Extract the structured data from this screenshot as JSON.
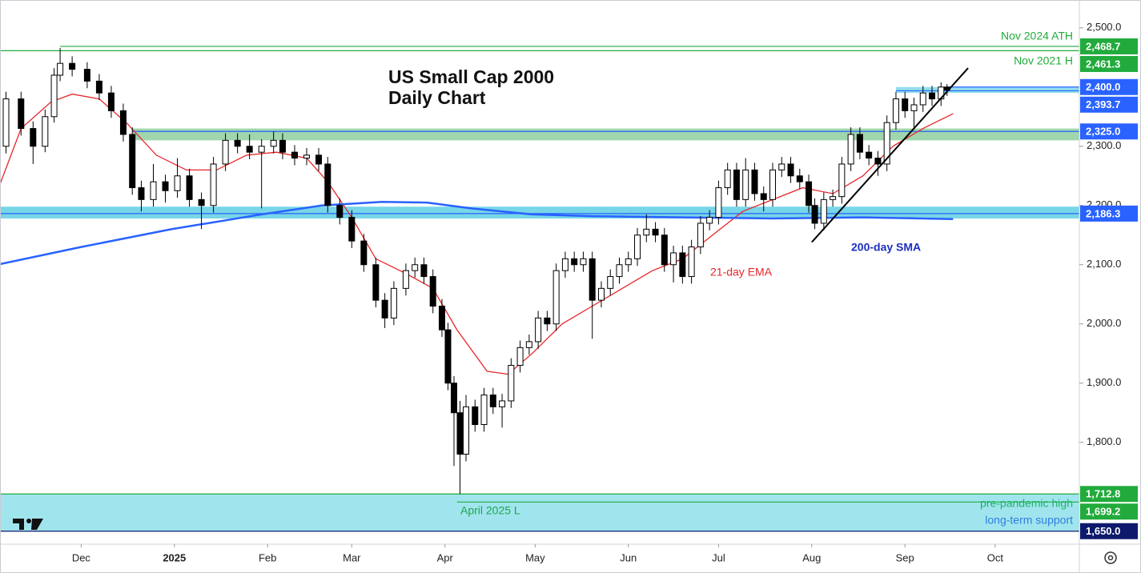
{
  "chart_data": {
    "type": "candlestick",
    "title": "US Small Cap 2000",
    "subtitle": "Daily Chart",
    "xlim": [
      3,
      362
    ],
    "ylim": [
      1628,
      2547
    ],
    "xticks": [
      {
        "value": 30,
        "label": "Dec"
      },
      {
        "value": 61,
        "label": "2025"
      },
      {
        "value": 92,
        "label": "Feb"
      },
      {
        "value": 120,
        "label": "Mar"
      },
      {
        "value": 151,
        "label": "Apr"
      },
      {
        "value": 181,
        "label": "May"
      },
      {
        "value": 212,
        "label": "Jun"
      },
      {
        "value": 242,
        "label": "Jul"
      },
      {
        "value": 273,
        "label": "Aug"
      },
      {
        "value": 304,
        "label": "Sep"
      },
      {
        "value": 334,
        "label": "Oct"
      }
    ],
    "yticks": [
      {
        "value": 2500,
        "label": "2,500.0"
      },
      {
        "value": 2300,
        "label": "2,300.0"
      },
      {
        "value": 2200,
        "label": "2,200.0"
      },
      {
        "value": 2100,
        "label": "2,100.0"
      },
      {
        "value": 2000,
        "label": "2,000.0"
      },
      {
        "value": 1900,
        "label": "1,900.0"
      },
      {
        "value": 1800,
        "label": "1,800.0"
      }
    ],
    "candles": {
      "x": [
        5,
        10,
        14,
        18,
        21,
        23,
        27,
        32,
        36,
        40,
        44,
        47,
        50,
        54,
        58,
        62,
        66,
        70,
        74,
        78,
        82,
        86,
        90,
        94,
        97,
        101,
        105,
        109,
        112,
        116,
        120,
        124,
        128,
        131,
        134,
        138,
        141,
        144,
        147,
        150,
        152,
        154,
        156,
        158,
        161,
        164,
        167,
        170,
        173,
        176,
        179,
        182,
        185,
        188,
        191,
        194,
        197,
        200,
        203,
        206,
        209,
        212,
        215,
        218,
        221,
        224,
        227,
        230,
        233,
        236,
        239,
        242,
        245,
        248,
        251,
        254,
        257,
        260,
        263,
        266,
        269,
        272,
        274,
        277,
        280,
        283,
        286,
        289,
        292,
        295,
        298,
        301,
        304,
        307,
        310,
        313,
        316,
        318
      ],
      "open": [
        2300,
        2380,
        2330,
        2300,
        2350,
        2420,
        2440,
        2430,
        2410,
        2390,
        2360,
        2320,
        2230,
        2210,
        2240,
        2225,
        2250,
        2210,
        2200,
        2270,
        2310,
        2300,
        2290,
        2300,
        2310,
        2290,
        2280,
        2285,
        2270,
        2200,
        2180,
        2140,
        2100,
        2040,
        2010,
        2060,
        2090,
        2100,
        2080,
        2030,
        1990,
        1900,
        1850,
        1780,
        1860,
        1830,
        1880,
        1860,
        1870,
        1930,
        1960,
        1970,
        2010,
        2000,
        2090,
        2110,
        2100,
        2110,
        2040,
        2060,
        2080,
        2100,
        2110,
        2150,
        2160,
        2150,
        2100,
        2120,
        2080,
        2130,
        2170,
        2180,
        2230,
        2260,
        2210,
        2260,
        2220,
        2210,
        2260,
        2270,
        2250,
        2240,
        2200,
        2170,
        2210,
        2215,
        2270,
        2320,
        2290,
        2280,
        2270,
        2340,
        2380,
        2360,
        2370,
        2390,
        2380,
        2400
      ],
      "high": [
        2392,
        2392,
        2342,
        2362,
        2432,
        2466,
        2452,
        2442,
        2422,
        2402,
        2372,
        2332,
        2242,
        2270,
        2252,
        2280,
        2262,
        2222,
        2282,
        2322,
        2322,
        2320,
        2312,
        2325,
        2322,
        2302,
        2297,
        2297,
        2282,
        2212,
        2192,
        2152,
        2112,
        2052,
        2072,
        2102,
        2112,
        2112,
        2092,
        2042,
        2002,
        1912,
        1870,
        1880,
        1872,
        1892,
        1892,
        1882,
        1942,
        1972,
        1982,
        2022,
        2022,
        2102,
        2122,
        2122,
        2122,
        2122,
        2072,
        2092,
        2112,
        2122,
        2162,
        2185,
        2172,
        2162,
        2132,
        2132,
        2142,
        2182,
        2192,
        2242,
        2272,
        2272,
        2280,
        2272,
        2232,
        2272,
        2282,
        2282,
        2262,
        2252,
        2212,
        2222,
        2227,
        2282,
        2332,
        2332,
        2302,
        2292,
        2352,
        2392,
        2392,
        2382,
        2402,
        2402,
        2408,
        2405
      ],
      "low": [
        2288,
        2318,
        2270,
        2290,
        2340,
        2410,
        2418,
        2398,
        2378,
        2348,
        2308,
        2218,
        2190,
        2198,
        2205,
        2213,
        2198,
        2160,
        2188,
        2258,
        2288,
        2278,
        2195,
        2288,
        2278,
        2268,
        2268,
        2258,
        2188,
        2168,
        2128,
        2088,
        2028,
        1993,
        1998,
        2048,
        2078,
        2068,
        2018,
        1978,
        1888,
        1760,
        1712.8,
        1768,
        1818,
        1818,
        1848,
        1825,
        1858,
        1918,
        1948,
        1958,
        1988,
        1988,
        2078,
        2088,
        2088,
        1975,
        2028,
        2048,
        2068,
        2088,
        2098,
        2138,
        2138,
        2088,
        2070,
        2068,
        2068,
        2118,
        2158,
        2168,
        2218,
        2198,
        2198,
        2208,
        2190,
        2198,
        2248,
        2238,
        2228,
        2188,
        2160,
        2158,
        2198,
        2203,
        2258,
        2278,
        2268,
        2250,
        2258,
        2328,
        2348,
        2330,
        2358,
        2368,
        2368,
        2385
      ],
      "close": [
        2380,
        2330,
        2300,
        2350,
        2420,
        2440,
        2430,
        2410,
        2390,
        2360,
        2320,
        2230,
        2210,
        2240,
        2225,
        2250,
        2210,
        2200,
        2270,
        2310,
        2300,
        2290,
        2300,
        2310,
        2290,
        2280,
        2285,
        2270,
        2200,
        2180,
        2140,
        2100,
        2040,
        2010,
        2060,
        2090,
        2100,
        2080,
        2030,
        1990,
        1900,
        1850,
        1780,
        1860,
        1830,
        1880,
        1860,
        1870,
        1930,
        1960,
        1970,
        2010,
        2000,
        2090,
        2110,
        2100,
        2110,
        2040,
        2060,
        2080,
        2100,
        2110,
        2150,
        2160,
        2150,
        2100,
        2120,
        2080,
        2130,
        2170,
        2180,
        2230,
        2260,
        2210,
        2260,
        2220,
        2210,
        2260,
        2270,
        2250,
        2240,
        2200,
        2170,
        2210,
        2215,
        2270,
        2320,
        2290,
        2280,
        2270,
        2340,
        2380,
        2360,
        2370,
        2390,
        2380,
        2400,
        2395
      ],
      "up_color": "#ffffff",
      "down_color": "#000000"
    },
    "series": [
      {
        "name": "21-day EMA",
        "color": "#e8262a",
        "x": [
          3,
          10,
          20,
          27,
          36,
          45,
          55,
          65,
          75,
          85,
          95,
          105,
          112,
          120,
          128,
          138,
          147,
          155,
          165,
          172,
          180,
          190,
          200,
          210,
          220,
          230,
          240,
          250,
          260,
          270,
          280,
          290,
          300,
          310,
          320
        ],
        "values": [
          2236,
          2330,
          2375,
          2388,
          2380,
          2340,
          2285,
          2260,
          2260,
          2285,
          2290,
          2280,
          2240,
          2180,
          2110,
          2085,
          2060,
          1990,
          1920,
          1915,
          1950,
          2000,
          2030,
          2060,
          2090,
          2110,
          2150,
          2190,
          2210,
          2230,
          2220,
          2250,
          2300,
          2330,
          2355
        ]
      },
      {
        "name": "200-day SMA",
        "color": "#2962ff",
        "x": [
          3,
          30,
          60,
          90,
          110,
          130,
          145,
          160,
          180,
          200,
          230,
          260,
          290,
          320
        ],
        "values": [
          2101,
          2130,
          2160,
          2185,
          2200,
          2206,
          2205,
          2195,
          2185,
          2182,
          2180,
          2178,
          2180,
          2177
        ]
      }
    ],
    "zones": [
      {
        "lower": 2310,
        "upper": 2330,
        "color": "#8fcf9f",
        "start": 47
      },
      {
        "lower": 2178,
        "upper": 2198,
        "color": "#5fcfe4",
        "start": 3
      },
      {
        "lower": 2390,
        "upper": 2400,
        "color": "#7fd8ea",
        "start": 301
      },
      {
        "lower": 1650,
        "upper": 1712.8,
        "color": "#8fe0ea",
        "start": 3
      }
    ],
    "levels": [
      {
        "value": 2468.7,
        "label": "2,468.7",
        "color": "#22ab3c",
        "start": 23
      },
      {
        "value": 2461.3,
        "label": "2,461.3",
        "color": "#22ab3c",
        "start": 3
      },
      {
        "value": 2400.0,
        "label": "2,400.0",
        "color": "#2962ff",
        "start": 318
      },
      {
        "value": 2393.7,
        "label": "2,393.7",
        "color": "#2962ff",
        "start": 301
      },
      {
        "value": 2325.0,
        "label": "2,325.0",
        "color": "#2962ff",
        "start": 47
      },
      {
        "value": 2186.3,
        "label": "2,186.3",
        "color": "#2962ff",
        "start": 3
      },
      {
        "value": 1712.8,
        "label": "1,712.8",
        "color": "#22ab3c",
        "start": 3
      },
      {
        "value": 1699.2,
        "label": "1,699.2",
        "color": "#22ab3c",
        "start": 155
      },
      {
        "value": 1650.0,
        "label": "1,650.0",
        "color": "#0d1a6b",
        "start": 3
      }
    ],
    "trendline": {
      "x": [
        273,
        325
      ],
      "values": [
        2138,
        2432
      ],
      "color": "#000000"
    },
    "annotations": [
      "Nov 2024 ATH",
      "Nov 2021 H",
      "200-day SMA",
      "21-day EMA",
      "April 2025 L",
      "pre-pandemic high",
      "long-term support"
    ]
  }
}
